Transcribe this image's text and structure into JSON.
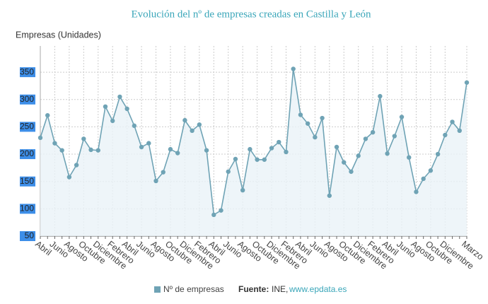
{
  "chart_data": {
    "type": "line",
    "title": "Evolución del nº de empresas creadas en Castilla y León",
    "y_label": "Empresas (Unidades)",
    "categories": [
      "Abril",
      null,
      "Junio",
      null,
      "Agosto",
      null,
      "Octubre",
      null,
      "Diciembre",
      null,
      "Febrero",
      null,
      "Abril",
      null,
      "Junio",
      null,
      "Agosto",
      null,
      "Octubre",
      null,
      "Diciembre",
      null,
      "Febrero",
      null,
      "Abril",
      null,
      "Junio",
      null,
      "Agosto",
      null,
      "Octubre",
      null,
      "Diciembre",
      null,
      "Febrero",
      null,
      "Abril",
      null,
      "Junio",
      null,
      "Agosto",
      null,
      "Octubre",
      null,
      "Diciembre",
      null,
      "Febrero",
      null,
      "Abril",
      null,
      "Junio",
      null,
      "Agosto",
      null,
      "Octubre",
      null,
      "Diciembre",
      null,
      null,
      "Marzo"
    ],
    "series": [
      {
        "name": "Nº de empresas",
        "color": "#6fa3b5",
        "values": [
          230,
          271,
          220,
          207,
          158,
          180,
          228,
          208,
          207,
          287,
          261,
          305,
          283,
          252,
          213,
          220,
          151,
          167,
          209,
          202,
          262,
          243,
          254,
          207,
          89,
          97,
          168,
          191,
          134,
          209,
          190,
          190,
          211,
          222,
          204,
          356,
          272,
          256,
          231,
          266,
          124,
          213,
          185,
          168,
          197,
          228,
          240,
          306,
          201,
          233,
          268,
          194,
          131,
          155,
          170,
          200,
          235,
          259,
          243,
          331
        ]
      }
    ],
    "ylim": [
      50,
      398
    ],
    "yticks": [
      50,
      100,
      150,
      200,
      250,
      300,
      350
    ],
    "grid": true,
    "source_label": "Fuente:",
    "source": "INE,",
    "source_url": "www.epdata.es"
  }
}
